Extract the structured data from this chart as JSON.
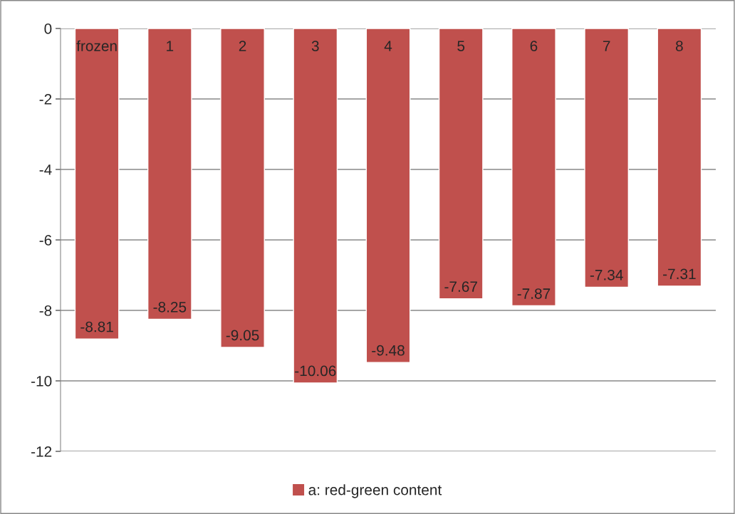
{
  "chart_data": {
    "type": "bar",
    "categories": [
      "frozen",
      "1",
      "2",
      "3",
      "4",
      "5",
      "6",
      "7",
      "8"
    ],
    "series": [
      {
        "name": "a: red-green content",
        "color": "#c0504d",
        "values": [
          -8.81,
          -8.25,
          -9.05,
          -10.06,
          -9.48,
          -7.67,
          -7.87,
          -7.34,
          -7.31
        ]
      }
    ],
    "ylim": [
      -12,
      0
    ],
    "yticks": [
      -12,
      -10,
      -8,
      -6,
      -4,
      -2,
      0
    ],
    "data_labels": true,
    "grid": "y",
    "legend": "bottom"
  }
}
